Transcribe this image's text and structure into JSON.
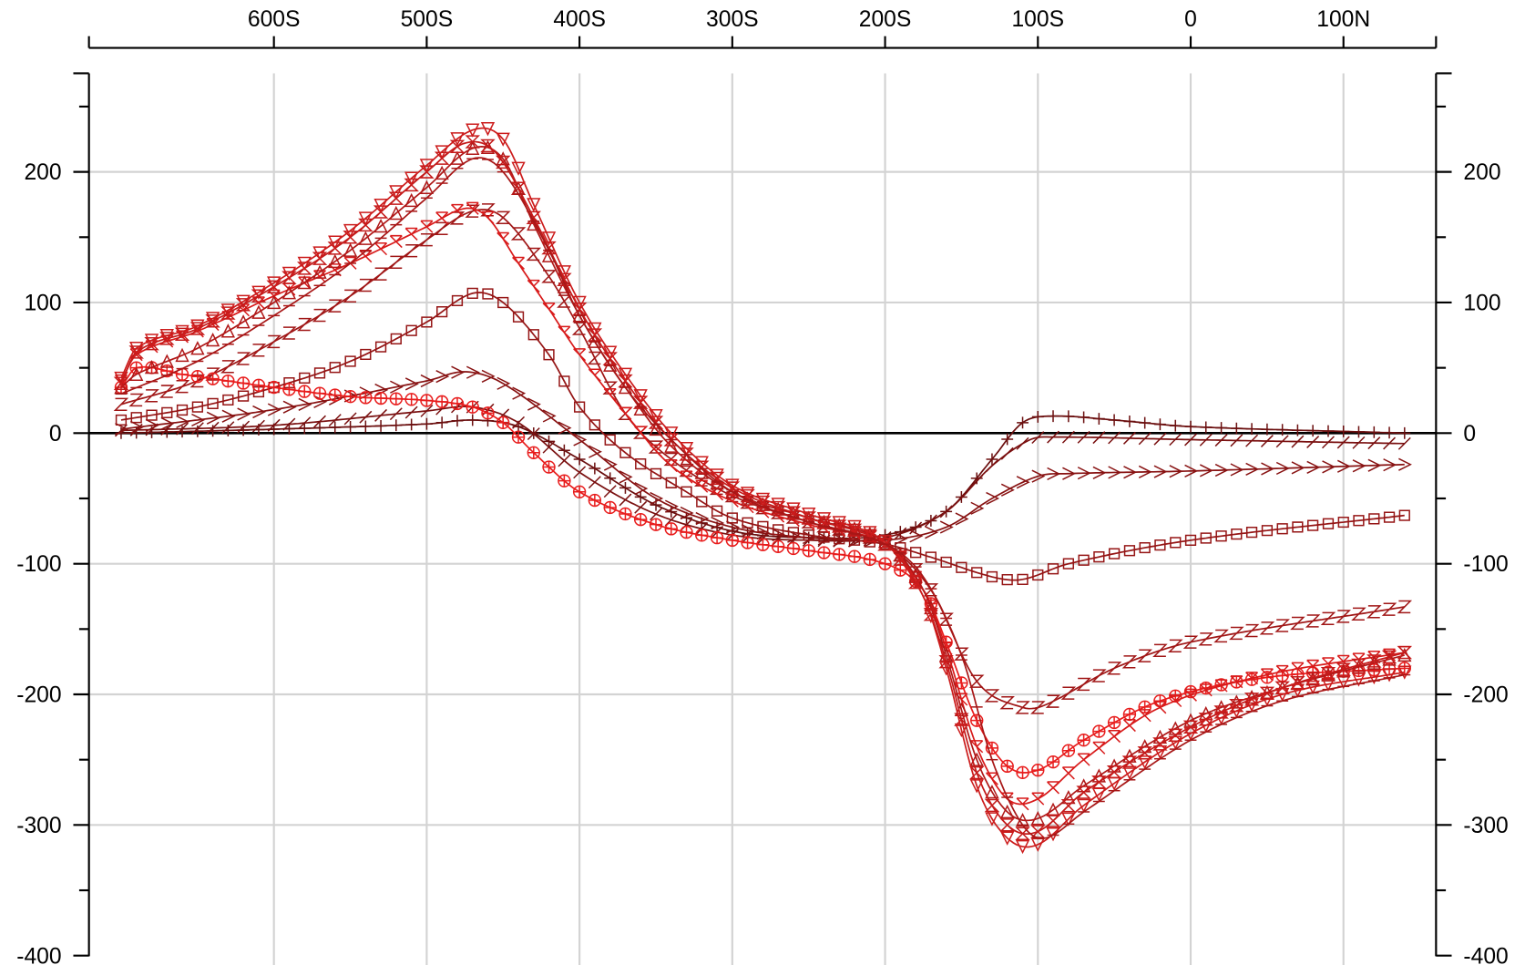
{
  "chart_data": {
    "type": "line",
    "title": "",
    "xlabel": "",
    "ylabel": "",
    "xlim": [
      -721,
      160
    ],
    "ylim": [
      -400,
      275
    ],
    "grid": true,
    "x_ticks": [
      {
        "value": -600,
        "label": "600S"
      },
      {
        "value": -500,
        "label": "500S"
      },
      {
        "value": -400,
        "label": "400S"
      },
      {
        "value": -300,
        "label": "300S"
      },
      {
        "value": -200,
        "label": "200S"
      },
      {
        "value": -100,
        "label": "100S"
      },
      {
        "value": 0,
        "label": "0"
      },
      {
        "value": 100,
        "label": "100N"
      }
    ],
    "y_ticks": [
      {
        "value": 200,
        "label": "200"
      },
      {
        "value": 100,
        "label": "100"
      },
      {
        "value": 0,
        "label": "0"
      },
      {
        "value": -100,
        "label": "-100"
      },
      {
        "value": -200,
        "label": "-200"
      },
      {
        "value": -300,
        "label": "-300"
      },
      {
        "value": -400,
        "label": "-400"
      }
    ],
    "series": [
      {
        "name": "plus",
        "marker": "plus",
        "color": "#6b0f0f",
        "points": [
          [
            -700,
            0
          ],
          [
            -600,
            3
          ],
          [
            -500,
            7
          ],
          [
            -470,
            10
          ],
          [
            -440,
            5
          ],
          [
            -400,
            -20
          ],
          [
            -350,
            -55
          ],
          [
            -300,
            -75
          ],
          [
            -250,
            -80
          ],
          [
            -200,
            -78
          ],
          [
            -160,
            -60
          ],
          [
            -130,
            -20
          ],
          [
            -110,
            8
          ],
          [
            -90,
            13
          ],
          [
            -50,
            10
          ],
          [
            0,
            5
          ],
          [
            140,
            0
          ]
        ]
      },
      {
        "name": "slash",
        "marker": "slash",
        "color": "#7a1010",
        "points": [
          [
            -700,
            2
          ],
          [
            -600,
            6
          ],
          [
            -500,
            17
          ],
          [
            -470,
            20
          ],
          [
            -440,
            8
          ],
          [
            -400,
            -30
          ],
          [
            -350,
            -62
          ],
          [
            -300,
            -78
          ],
          [
            -250,
            -82
          ],
          [
            -200,
            -80
          ],
          [
            -160,
            -60
          ],
          [
            -130,
            -25
          ],
          [
            -105,
            -5
          ],
          [
            -90,
            -3
          ],
          [
            0,
            -5
          ],
          [
            140,
            -8
          ]
        ]
      },
      {
        "name": "chevron",
        "marker": "chevron",
        "color": "#881212",
        "points": [
          [
            -700,
            3
          ],
          [
            -600,
            18
          ],
          [
            -500,
            40
          ],
          [
            -475,
            47
          ],
          [
            -450,
            38
          ],
          [
            -400,
            -5
          ],
          [
            -350,
            -50
          ],
          [
            -300,
            -72
          ],
          [
            -250,
            -80
          ],
          [
            -200,
            -82
          ],
          [
            -160,
            -72
          ],
          [
            -130,
            -50
          ],
          [
            -100,
            -33
          ],
          [
            -80,
            -31
          ],
          [
            0,
            -29
          ],
          [
            140,
            -24
          ]
        ]
      },
      {
        "name": "square",
        "marker": "square",
        "color": "#951515",
        "points": [
          [
            -700,
            10
          ],
          [
            -650,
            20
          ],
          [
            -600,
            35
          ],
          [
            -550,
            55
          ],
          [
            -500,
            85
          ],
          [
            -470,
            107
          ],
          [
            -450,
            100
          ],
          [
            -420,
            60
          ],
          [
            -400,
            20
          ],
          [
            -370,
            -15
          ],
          [
            -330,
            -45
          ],
          [
            -300,
            -65
          ],
          [
            -250,
            -78
          ],
          [
            -200,
            -85
          ],
          [
            -170,
            -95
          ],
          [
            -130,
            -110
          ],
          [
            -110,
            -112
          ],
          [
            -80,
            -100
          ],
          [
            0,
            -82
          ],
          [
            140,
            -63
          ]
        ]
      },
      {
        "name": "zigzag",
        "marker": "zigzag",
        "color": "#a01616",
        "points": [
          [
            -700,
            22
          ],
          [
            -650,
            40
          ],
          [
            -600,
            70
          ],
          [
            -550,
            105
          ],
          [
            -500,
            148
          ],
          [
            -470,
            170
          ],
          [
            -450,
            165
          ],
          [
            -420,
            120
          ],
          [
            -400,
            80
          ],
          [
            -370,
            15
          ],
          [
            -340,
            -20
          ],
          [
            -300,
            -48
          ],
          [
            -250,
            -68
          ],
          [
            -200,
            -85
          ],
          [
            -170,
            -120
          ],
          [
            -140,
            -190
          ],
          [
            -110,
            -210
          ],
          [
            -95,
            -208
          ],
          [
            -50,
            -180
          ],
          [
            0,
            -160
          ],
          [
            140,
            -133
          ]
        ]
      },
      {
        "name": "circle-plus",
        "marker": "circleplus",
        "color": "#e81c1c",
        "points": [
          [
            -700,
            35
          ],
          [
            -690,
            50
          ],
          [
            -660,
            45
          ],
          [
            -600,
            35
          ],
          [
            -550,
            28
          ],
          [
            -500,
            25
          ],
          [
            -470,
            20
          ],
          [
            -450,
            8
          ],
          [
            -430,
            -15
          ],
          [
            -400,
            -45
          ],
          [
            -350,
            -70
          ],
          [
            -300,
            -82
          ],
          [
            -250,
            -90
          ],
          [
            -200,
            -100
          ],
          [
            -175,
            -120
          ],
          [
            -160,
            -160
          ],
          [
            -140,
            -220
          ],
          [
            -120,
            -255
          ],
          [
            -100,
            -258
          ],
          [
            -70,
            -235
          ],
          [
            -20,
            -205
          ],
          [
            50,
            -187
          ],
          [
            140,
            -180
          ]
        ]
      },
      {
        "name": "ymark",
        "marker": "ymark",
        "color": "#d81a1a",
        "points": [
          [
            -700,
            40
          ],
          [
            -690,
            60
          ],
          [
            -650,
            78
          ],
          [
            -600,
            105
          ],
          [
            -550,
            130
          ],
          [
            -500,
            158
          ],
          [
            -475,
            172
          ],
          [
            -460,
            165
          ],
          [
            -440,
            130
          ],
          [
            -420,
            95
          ],
          [
            -400,
            60
          ],
          [
            -370,
            15
          ],
          [
            -340,
            -25
          ],
          [
            -300,
            -52
          ],
          [
            -250,
            -70
          ],
          [
            -200,
            -85
          ],
          [
            -175,
            -120
          ],
          [
            -160,
            -165
          ],
          [
            -140,
            -240
          ],
          [
            -120,
            -280
          ],
          [
            -100,
            -280
          ],
          [
            -70,
            -250
          ],
          [
            -20,
            -210
          ],
          [
            50,
            -185
          ],
          [
            140,
            -168
          ]
        ]
      },
      {
        "name": "triangle-up",
        "marker": "triup",
        "color": "#b01818",
        "points": [
          [
            -700,
            35
          ],
          [
            -690,
            45
          ],
          [
            -650,
            65
          ],
          [
            -600,
            100
          ],
          [
            -550,
            140
          ],
          [
            -500,
            188
          ],
          [
            -470,
            218
          ],
          [
            -450,
            210
          ],
          [
            -430,
            160
          ],
          [
            -400,
            90
          ],
          [
            -370,
            35
          ],
          [
            -340,
            -10
          ],
          [
            -300,
            -45
          ],
          [
            -250,
            -65
          ],
          [
            -200,
            -83
          ],
          [
            -175,
            -120
          ],
          [
            -160,
            -170
          ],
          [
            -140,
            -250
          ],
          [
            -120,
            -290
          ],
          [
            -100,
            -295
          ],
          [
            -70,
            -270
          ],
          [
            0,
            -220
          ],
          [
            60,
            -195
          ],
          [
            140,
            -170
          ]
        ]
      },
      {
        "name": "hourglass",
        "marker": "hourglass",
        "color": "#c41a1a",
        "points": [
          [
            -700,
            38
          ],
          [
            -690,
            62
          ],
          [
            -650,
            80
          ],
          [
            -600,
            112
          ],
          [
            -550,
            150
          ],
          [
            -500,
            200
          ],
          [
            -475,
            222
          ],
          [
            -455,
            215
          ],
          [
            -430,
            165
          ],
          [
            -400,
            95
          ],
          [
            -370,
            40
          ],
          [
            -340,
            -5
          ],
          [
            -300,
            -42
          ],
          [
            -250,
            -65
          ],
          [
            -200,
            -85
          ],
          [
            -175,
            -125
          ],
          [
            -160,
            -175
          ],
          [
            -140,
            -260
          ],
          [
            -120,
            -300
          ],
          [
            -100,
            -305
          ],
          [
            -70,
            -275
          ],
          [
            0,
            -225
          ],
          [
            60,
            -195
          ],
          [
            140,
            -168
          ]
        ]
      },
      {
        "name": "triangle-down",
        "marker": "tridown",
        "color": "#cc1c1c",
        "points": [
          [
            -700,
            42
          ],
          [
            -690,
            65
          ],
          [
            -650,
            82
          ],
          [
            -600,
            115
          ],
          [
            -550,
            155
          ],
          [
            -500,
            205
          ],
          [
            -470,
            232
          ],
          [
            -450,
            225
          ],
          [
            -430,
            175
          ],
          [
            -400,
            100
          ],
          [
            -370,
            45
          ],
          [
            -340,
            0
          ],
          [
            -300,
            -40
          ],
          [
            -250,
            -62
          ],
          [
            -200,
            -83
          ],
          [
            -175,
            -125
          ],
          [
            -160,
            -180
          ],
          [
            -140,
            -270
          ],
          [
            -120,
            -310
          ],
          [
            -100,
            -315
          ],
          [
            -70,
            -285
          ],
          [
            0,
            -230
          ],
          [
            60,
            -200
          ],
          [
            140,
            -183
          ]
        ]
      },
      {
        "name": "dash",
        "marker": "dash",
        "color": "#a81717",
        "points": [
          [
            -700,
            30
          ],
          [
            -650,
            55
          ],
          [
            -600,
            90
          ],
          [
            -550,
            130
          ],
          [
            -500,
            180
          ],
          [
            -470,
            210
          ],
          [
            -450,
            200
          ],
          [
            -420,
            140
          ],
          [
            -400,
            90
          ],
          [
            -370,
            35
          ],
          [
            -340,
            -5
          ],
          [
            -300,
            -45
          ],
          [
            -250,
            -68
          ],
          [
            -200,
            -85
          ],
          [
            -175,
            -110
          ],
          [
            -150,
            -170
          ],
          [
            -130,
            -250
          ],
          [
            -110,
            -300
          ],
          [
            -95,
            -310
          ],
          [
            -70,
            -290
          ],
          [
            0,
            -235
          ],
          [
            60,
            -205
          ],
          [
            140,
            -185
          ]
        ]
      }
    ]
  }
}
